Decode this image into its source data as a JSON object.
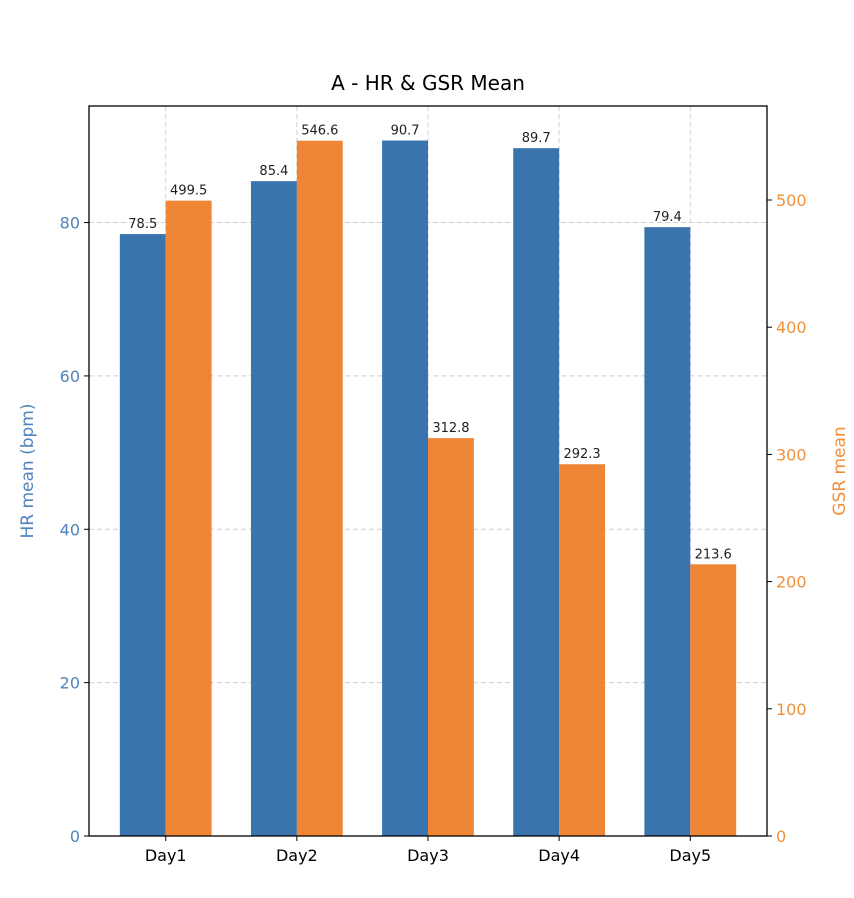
{
  "chart_data": {
    "type": "bar",
    "title": "A - HR & GSR Mean",
    "categories": [
      "Day1",
      "Day2",
      "Day3",
      "Day4",
      "Day5"
    ],
    "series": [
      {
        "name": "HR mean (bpm)",
        "axis": "left",
        "color": "#3a74ae",
        "values": [
          78.5,
          85.4,
          90.7,
          89.7,
          79.4
        ],
        "labels": [
          "78.5",
          "85.4",
          "90.7",
          "89.7",
          "79.4"
        ]
      },
      {
        "name": "GSR mean",
        "axis": "right",
        "color": "#ef8636",
        "values": [
          499.5,
          546.6,
          312.8,
          292.3,
          213.6
        ],
        "labels": [
          "499.5",
          "546.6",
          "312.8",
          "292.3",
          "213.6"
        ]
      }
    ],
    "ylabel_left": "HR mean (bpm)",
    "ylabel_right": "GSR mean",
    "ylim_left": [
      0,
      95.2
    ],
    "ylim_right": [
      0,
      573.9
    ],
    "yticks_left": [
      "0",
      "20",
      "40",
      "60",
      "80"
    ],
    "yticks_right": [
      "0",
      "100",
      "200",
      "300",
      "400",
      "500"
    ],
    "left_axis_color": "#4f84bd",
    "right_axis_color": "#f0913a",
    "grid": true
  }
}
